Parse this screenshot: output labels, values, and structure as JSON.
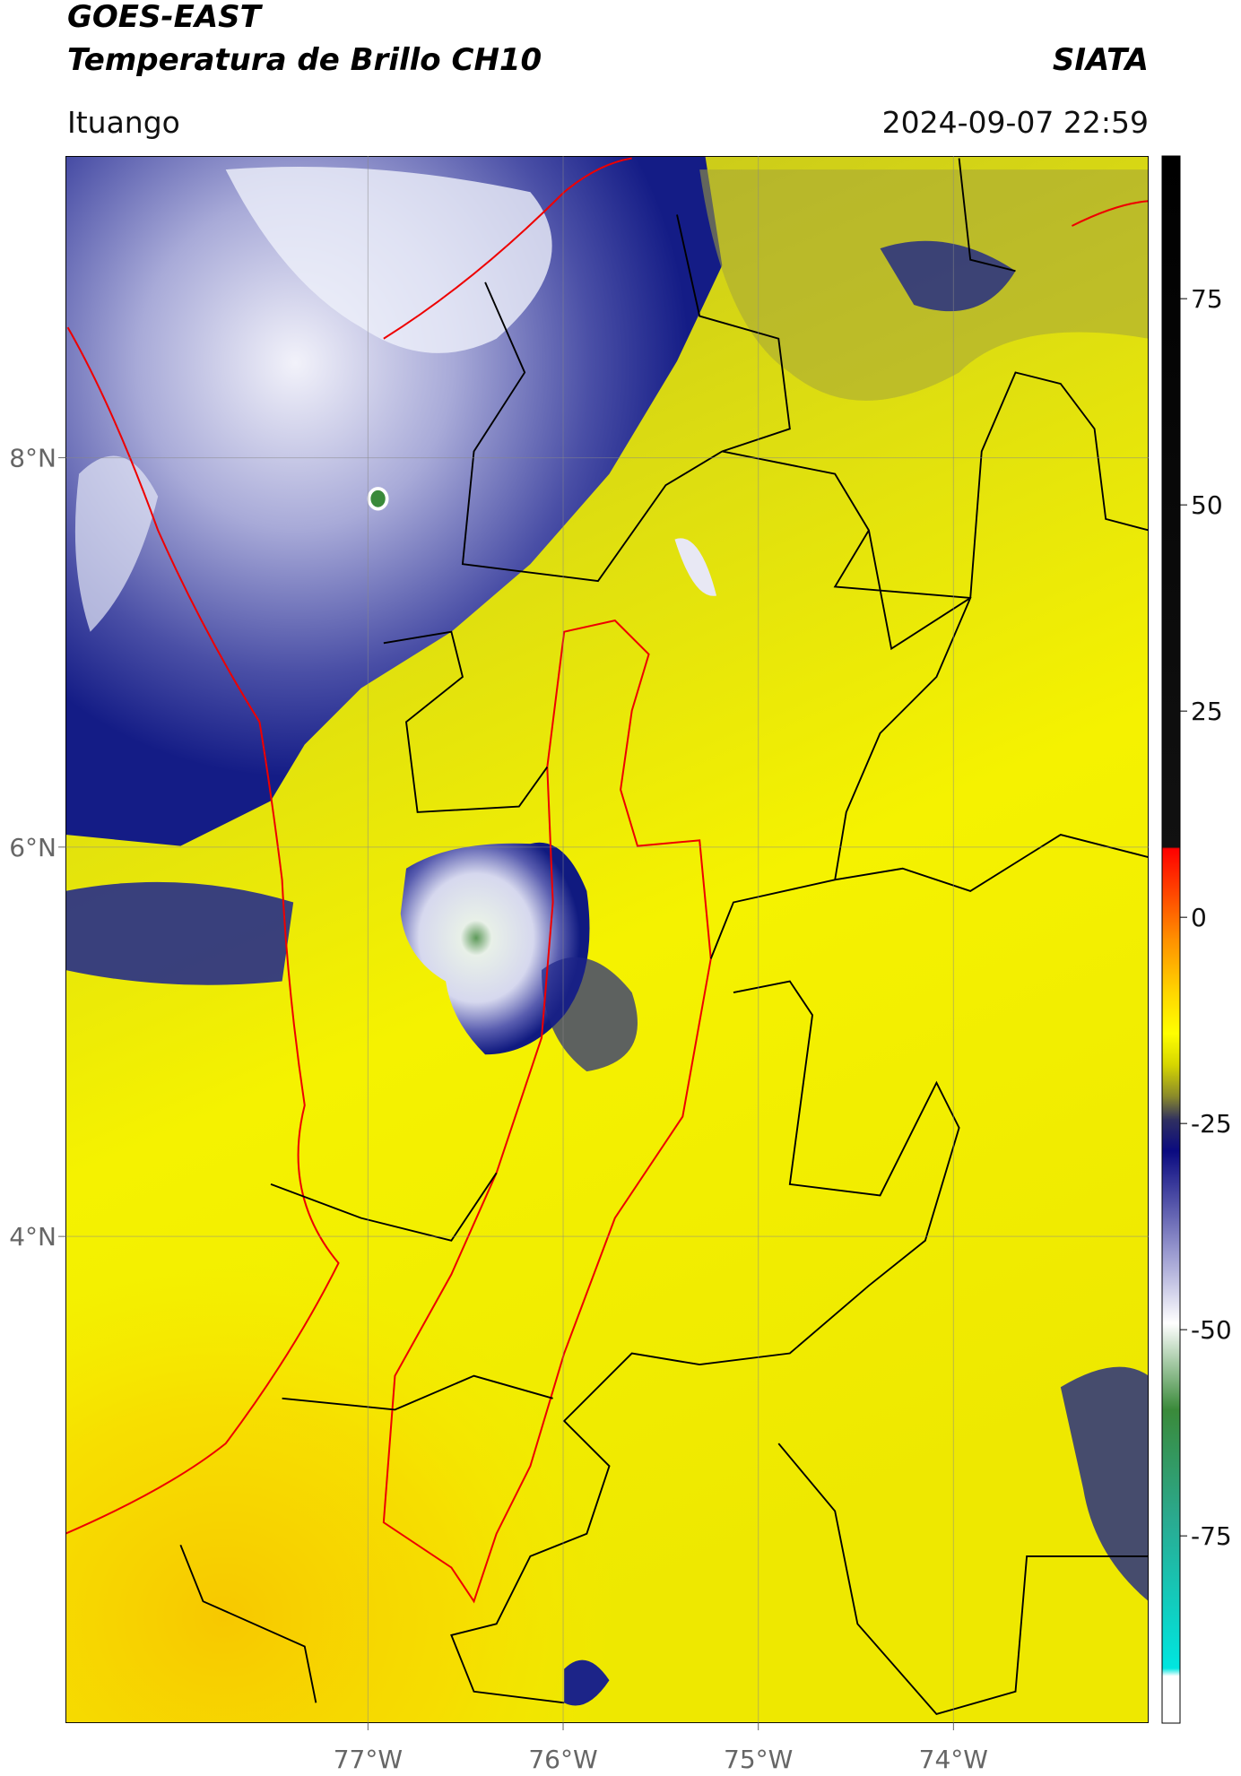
{
  "chart_data": {
    "type": "map",
    "title": "GOES-EAST",
    "subtitle": "Temperatura de Brillo CH10",
    "source": "SIATA",
    "location": "Ituango",
    "datetime": "2024-09-07 22:59",
    "xlim": [
      -78.55,
      -73.0
    ],
    "ylim": [
      1.5,
      9.55
    ],
    "xticks": [
      {
        "value": -77,
        "label": "77°W"
      },
      {
        "value": -76,
        "label": "76°W"
      },
      {
        "value": -75,
        "label": "75°W"
      },
      {
        "value": -74,
        "label": "74°W"
      }
    ],
    "yticks": [
      {
        "value": 8,
        "label": "8°N"
      },
      {
        "value": 6,
        "label": "6°N"
      },
      {
        "value": 4,
        "label": "4°N"
      }
    ],
    "grid": true,
    "colorbar": {
      "lim": [
        -97.7,
        92.3
      ],
      "ticks": [
        75,
        50,
        25,
        0,
        -25,
        -50,
        -75
      ]
    }
  }
}
